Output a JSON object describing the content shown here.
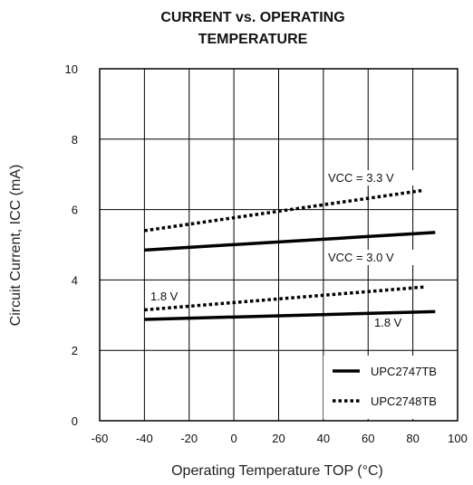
{
  "chart_data": {
    "type": "line",
    "title_line1": "CURRENT vs. OPERATING",
    "title_line2": "TEMPERATURE",
    "xlabel": "Operating Temperature  TOP  (°C)",
    "ylabel": "Circuit Current, ICC  (mA)",
    "xlim": [
      -60,
      100
    ],
    "ylim": [
      0,
      10
    ],
    "xticks": [
      -60,
      -40,
      -20,
      0,
      20,
      40,
      60,
      80,
      100
    ],
    "yticks": [
      0,
      2,
      4,
      6,
      8,
      10
    ],
    "grid": true,
    "legend_position": "bottom-right",
    "series": [
      {
        "name": "UPC2747TB",
        "style": "solid",
        "color": "#000000",
        "annotation": "VCC = 3.0 V",
        "x": [
          -40,
          90
        ],
        "y": [
          4.85,
          5.35
        ]
      },
      {
        "name": "UPC2748TB",
        "style": "dotted",
        "color": "#000000",
        "annotation": "VCC = 3.3 V",
        "x": [
          -40,
          85
        ],
        "y": [
          5.4,
          6.55
        ]
      },
      {
        "name": "UPC2747TB",
        "style": "solid",
        "color": "#000000",
        "annotation": "1.8 V",
        "x": [
          -40,
          90
        ],
        "y": [
          2.88,
          3.1
        ]
      },
      {
        "name": "UPC2748TB",
        "style": "dotted",
        "color": "#000000",
        "annotation": "1.8 V",
        "x": [
          -40,
          85
        ],
        "y": [
          3.15,
          3.8
        ]
      }
    ],
    "legend": [
      {
        "label": "UPC2747TB",
        "style": "solid"
      },
      {
        "label": "UPC2748TB",
        "style": "dotted"
      }
    ]
  }
}
